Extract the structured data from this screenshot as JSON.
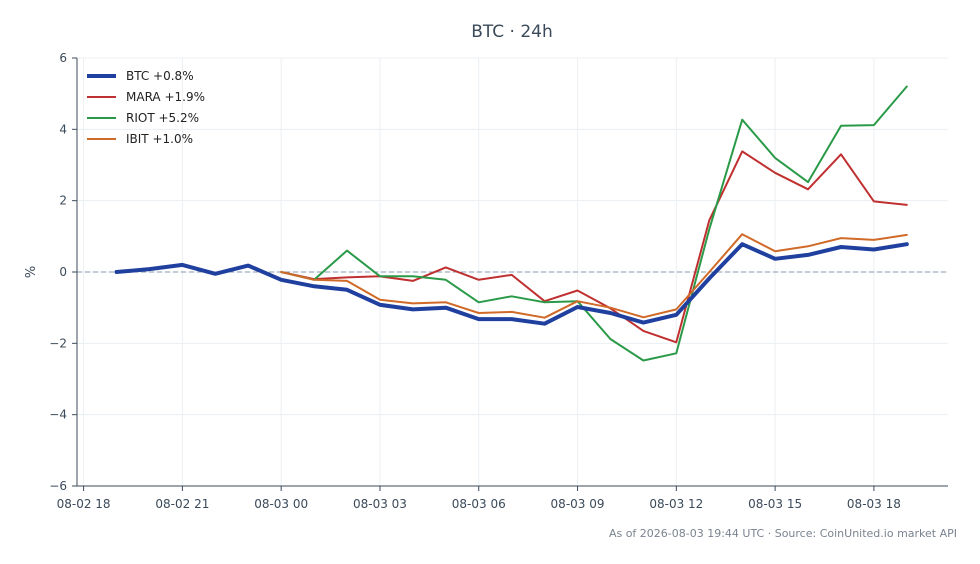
{
  "chart_data": {
    "type": "line",
    "title": "BTC · 24h",
    "ylabel": "%",
    "xlabel": "",
    "footer": "As of 2026-08-03 19:44 UTC · Source: CoinUnited.io market API",
    "ylim": [
      -6,
      6
    ],
    "xlim": [
      -0.2,
      26.25
    ],
    "yticks": [
      6,
      4,
      2,
      0,
      -2,
      -4,
      -6
    ],
    "ytick_labels": [
      "6",
      "4",
      "2",
      "0",
      "−2",
      "−4",
      "−6"
    ],
    "xticks": [
      0,
      3,
      6,
      9,
      12,
      15,
      18,
      21,
      24
    ],
    "xtick_labels": [
      "08-02 18",
      "08-02 21",
      "08-03 00",
      "08-03 03",
      "08-03 06",
      "08-03 09",
      "08-03 12",
      "08-03 15",
      "08-03 18"
    ],
    "grid": true,
    "zero_line": true,
    "legend_position": "top-left",
    "series": [
      {
        "name": "BTC +0.8%",
        "color": "#2040a0",
        "width": 4,
        "x": [
          1,
          2,
          3,
          4,
          5,
          6,
          7,
          8,
          9,
          10,
          11,
          12,
          13,
          14,
          15,
          16,
          17,
          18,
          19,
          20,
          21,
          22,
          23,
          24,
          25
        ],
        "y": [
          0.0,
          0.08,
          0.2,
          -0.05,
          0.18,
          -0.22,
          -0.4,
          -0.5,
          -0.92,
          -1.05,
          -1.0,
          -1.32,
          -1.32,
          -1.45,
          -0.98,
          -1.15,
          -1.42,
          -1.2,
          -0.18,
          0.78,
          0.37,
          0.48,
          0.7,
          0.63,
          0.78
        ]
      },
      {
        "name": "MARA +1.9%",
        "color": "#c03030",
        "width": 2,
        "x": [
          6,
          7,
          8,
          9,
          10,
          11,
          12,
          13,
          14,
          15,
          16,
          17,
          18,
          19,
          20,
          21,
          22,
          23,
          24,
          25
        ],
        "y": [
          0.0,
          -0.2,
          -0.15,
          -0.12,
          -0.25,
          0.13,
          -0.22,
          -0.08,
          -0.82,
          -0.52,
          -1.02,
          -1.65,
          -1.97,
          1.45,
          3.38,
          2.78,
          2.32,
          3.3,
          1.98,
          1.88
        ]
      },
      {
        "name": "RIOT +5.2%",
        "color": "#2a9a48",
        "width": 2,
        "x": [
          6,
          7,
          8,
          9,
          10,
          11,
          12,
          13,
          14,
          15,
          16,
          17,
          18,
          19,
          20,
          21,
          22,
          23,
          24,
          25
        ],
        "y": [
          0.0,
          -0.22,
          0.6,
          -0.12,
          -0.12,
          -0.22,
          -0.85,
          -0.68,
          -0.85,
          -0.82,
          -1.88,
          -2.48,
          -2.28,
          1.2,
          4.27,
          3.2,
          2.52,
          4.1,
          4.12,
          5.2
        ]
      },
      {
        "name": "IBIT +1.0%",
        "color": "#d06a28",
        "width": 2,
        "x": [
          6,
          7,
          8,
          9,
          10,
          11,
          12,
          13,
          14,
          15,
          16,
          17,
          18,
          19,
          20,
          21,
          22,
          23,
          24,
          25
        ],
        "y": [
          0.0,
          -0.22,
          -0.25,
          -0.78,
          -0.88,
          -0.85,
          -1.15,
          -1.12,
          -1.28,
          -0.82,
          -1.0,
          -1.27,
          -1.05,
          0.0,
          1.06,
          0.58,
          0.72,
          0.95,
          0.9,
          1.04
        ]
      }
    ]
  }
}
